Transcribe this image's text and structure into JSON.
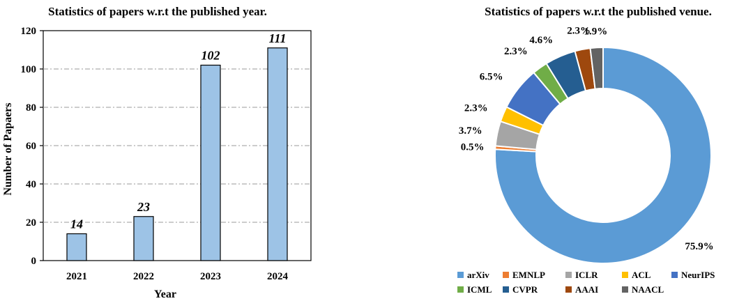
{
  "chart_data": [
    {
      "type": "bar",
      "title": "Statistics of papers w.r.t the published year.",
      "xlabel": "Year",
      "ylabel": "Number of Papaers",
      "categories": [
        "2021",
        "2022",
        "2023",
        "2024"
      ],
      "values": [
        14,
        23,
        102,
        111
      ],
      "data_labels": [
        "14",
        "23",
        "102",
        "111"
      ],
      "ylim": [
        0,
        120
      ],
      "yticks": [
        "0",
        "20",
        "40",
        "60",
        "80",
        "100",
        "120"
      ],
      "grid": "horizontal dash-dot",
      "bar_color": "#9dc3e6"
    },
    {
      "type": "pie",
      "style": "donut",
      "title": "Statistics of papers w.r.t the published venue.",
      "legend_position": "bottom",
      "slices": [
        {
          "label": "arXiv",
          "value": 75.9,
          "text": "75.9%",
          "color": "#5b9bd5"
        },
        {
          "label": "EMNLP",
          "value": 0.5,
          "text": "0.5%",
          "color": "#ed7d31"
        },
        {
          "label": "ICLR",
          "value": 3.7,
          "text": "3.7%",
          "color": "#a5a5a5"
        },
        {
          "label": "ACL",
          "value": 2.3,
          "text": "2.3%",
          "color": "#ffc000"
        },
        {
          "label": "NeurIPS",
          "value": 6.5,
          "text": "6.5%",
          "color": "#4472c4"
        },
        {
          "label": "ICML",
          "value": 2.3,
          "text": "2.3%",
          "color": "#70ad47"
        },
        {
          "label": "CVPR",
          "value": 4.6,
          "text": "4.6%",
          "color": "#255e91"
        },
        {
          "label": "AAAI",
          "value": 2.3,
          "text": "2.3%",
          "color": "#9e480e"
        },
        {
          "label": "NAACL",
          "value": 1.9,
          "text": "1.9%",
          "color": "#636363"
        }
      ]
    }
  ]
}
